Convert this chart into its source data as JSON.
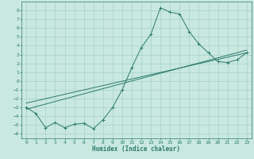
{
  "bg_color": "#c8e8e0",
  "line_color": "#2d7a6c",
  "grid_color": "#a0ccc4",
  "xlabel": "Humidex (Indice chaleur)",
  "xlim": [
    -0.5,
    23.5
  ],
  "ylim": [
    -6.5,
    9.0
  ],
  "xticks": [
    0,
    1,
    2,
    3,
    4,
    5,
    6,
    7,
    8,
    9,
    10,
    11,
    12,
    13,
    14,
    15,
    16,
    17,
    18,
    19,
    20,
    21,
    22,
    23
  ],
  "yticks": [
    8,
    7,
    6,
    5,
    4,
    3,
    2,
    1,
    0,
    -1,
    -2,
    -3,
    -4,
    -5,
    -6
  ],
  "curve1_x": [
    0,
    1,
    2,
    3,
    4,
    5,
    6,
    7,
    8,
    9,
    10,
    11,
    12,
    13,
    14,
    15,
    16,
    17,
    18,
    19,
    20,
    21,
    22,
    23
  ],
  "curve1_y": [
    -3.0,
    -3.7,
    -5.3,
    -4.7,
    -5.3,
    -4.9,
    -4.8,
    -5.4,
    -4.4,
    -3.0,
    -1.0,
    1.5,
    3.8,
    5.3,
    8.3,
    7.8,
    7.6,
    5.6,
    4.2,
    3.2,
    2.2,
    2.1,
    2.4,
    3.2
  ],
  "curve2_x": [
    0,
    23
  ],
  "curve2_y": [
    -3.2,
    3.5
  ],
  "curve3_x": [
    0,
    23
  ],
  "curve3_y": [
    -2.5,
    3.2
  ]
}
